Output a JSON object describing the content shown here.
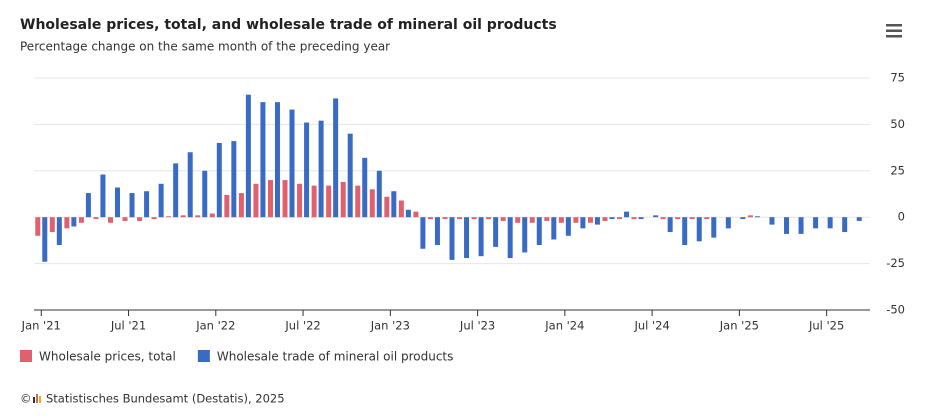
{
  "chart_data": {
    "type": "bar",
    "title": "Wholesale prices, total, and wholesale trade of mineral oil products",
    "subtitle": "Percentage change on the same month of the preceding year",
    "credit_symbol": "©",
    "credit": "Statistisches Bundesamt (Destatis), 2025",
    "categories": [
      "Jan '21",
      null,
      null,
      null,
      null,
      null,
      "Jul '21",
      null,
      null,
      null,
      null,
      null,
      "Jan '22",
      null,
      null,
      null,
      null,
      null,
      "Jul '22",
      null,
      null,
      null,
      null,
      null,
      "Jan '23",
      null,
      null,
      null,
      null,
      null,
      "Jul '23",
      null,
      null,
      null,
      null,
      null,
      "Jan '24",
      null,
      null,
      null,
      null,
      null,
      "Jul '24",
      null,
      null,
      null,
      null,
      null,
      "Jan '25",
      null,
      null,
      null,
      null,
      null,
      "Jul '25",
      null,
      null
    ],
    "series": [
      {
        "name": "Wholesale prices, total",
        "color": "#e0606e",
        "values": [
          -10,
          -8,
          -6,
          -3,
          -1,
          -3,
          -2,
          -2,
          -1,
          0.5,
          1,
          1,
          2,
          12,
          13,
          18,
          20,
          20,
          18,
          17,
          17,
          19,
          17,
          15,
          11,
          9,
          3,
          -1,
          -1,
          -1,
          -1,
          -1,
          -2,
          -3,
          -3,
          -2,
          -3,
          -3,
          -3,
          -2,
          -1,
          -1,
          0,
          -1,
          -1,
          -1,
          -1,
          0,
          0,
          1,
          0,
          0,
          0,
          0,
          0,
          0,
          0
        ]
      },
      {
        "name": "Wholesale trade of mineral oil products",
        "color": "#3a6bc4",
        "values": [
          -24,
          -15,
          -5,
          13,
          23,
          16,
          13,
          14,
          18,
          29,
          35,
          25,
          40,
          41,
          66,
          62,
          62,
          58,
          51,
          52,
          64,
          45,
          32,
          25,
          14,
          4,
          -17,
          -15,
          -23,
          -22,
          -21,
          -16,
          -22,
          -19,
          -15,
          -12,
          -10,
          -6,
          -4,
          -1,
          3,
          -1,
          1,
          -8,
          -15,
          -13,
          -11,
          -6,
          -1,
          0.5,
          -4,
          -9,
          -9,
          -6,
          -6,
          -8,
          -2
        ]
      }
    ],
    "ylim": [
      -50,
      75
    ],
    "yticks": [
      -50,
      -25,
      0,
      25,
      50,
      75
    ],
    "grid": true,
    "legend": "bottom-left"
  }
}
